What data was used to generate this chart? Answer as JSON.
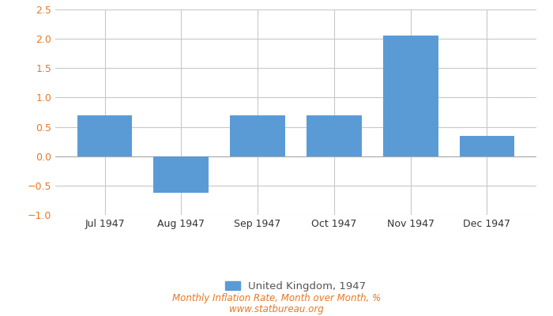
{
  "categories": [
    "Jul 1947",
    "Aug 1947",
    "Sep 1947",
    "Oct 1947",
    "Nov 1947",
    "Dec 1947"
  ],
  "values": [
    0.69,
    -0.62,
    0.7,
    0.69,
    2.06,
    0.35
  ],
  "bar_color": "#5b9bd5",
  "ylim": [
    -1.0,
    2.5
  ],
  "yticks": [
    -1.0,
    -0.5,
    0.0,
    0.5,
    1.0,
    1.5,
    2.0,
    2.5
  ],
  "legend_label": "United Kingdom, 1947",
  "footer_line1": "Monthly Inflation Rate, Month over Month, %",
  "footer_line2": "www.statbureau.org",
  "background_color": "#ffffff",
  "grid_color": "#c8c8c8",
  "tick_color": "#e87722",
  "footer_color": "#e87722",
  "legend_text_color": "#555555"
}
